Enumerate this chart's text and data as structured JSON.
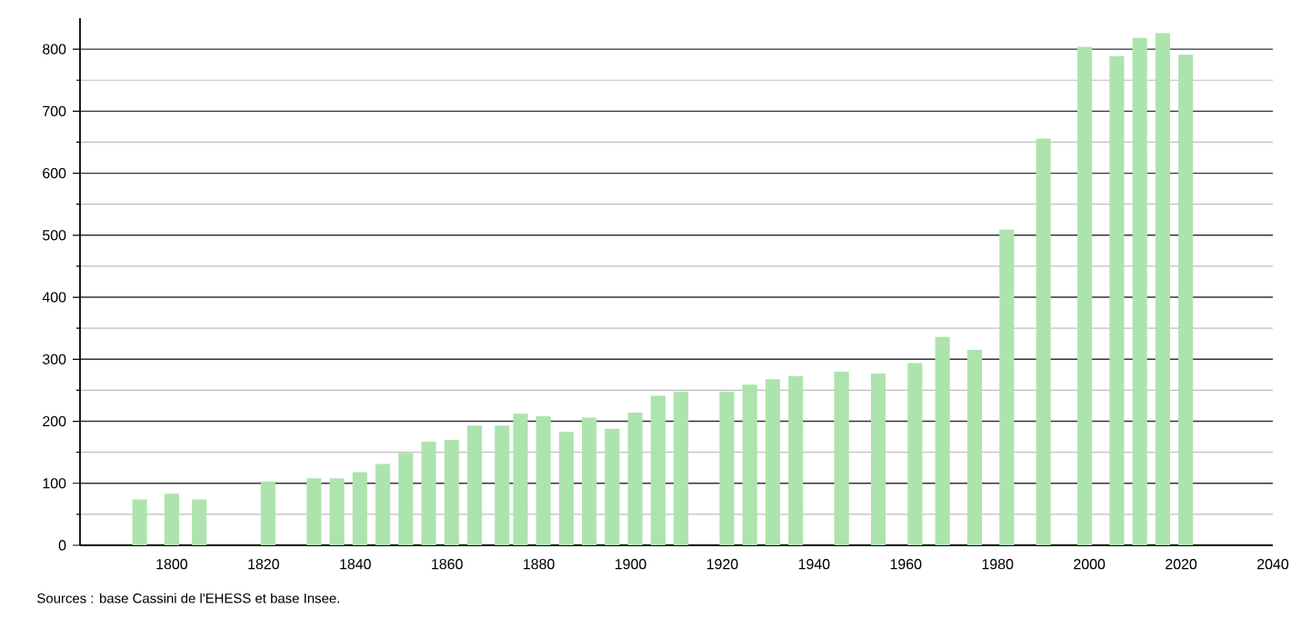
{
  "chart_data": {
    "type": "bar",
    "x": [
      1793,
      1800,
      1806,
      1821,
      1831,
      1836,
      1841,
      1846,
      1851,
      1856,
      1861,
      1866,
      1872,
      1876,
      1881,
      1886,
      1891,
      1896,
      1901,
      1906,
      1911,
      1921,
      1926,
      1931,
      1936,
      1946,
      1954,
      1962,
      1968,
      1975,
      1982,
      1990,
      1999,
      2006,
      2011,
      2016,
      2021
    ],
    "values": [
      74,
      83,
      74,
      103,
      108,
      108,
      118,
      131,
      149,
      167,
      170,
      193,
      193,
      212,
      208,
      183,
      206,
      188,
      214,
      241,
      248,
      248,
      259,
      268,
      273,
      280,
      277,
      294,
      336,
      315,
      509,
      656,
      804,
      789,
      818,
      826,
      791
    ],
    "color": "#ade4ad",
    "xlim": [
      1780,
      2040
    ],
    "xticks": [
      1800,
      1820,
      1840,
      1860,
      1880,
      1900,
      1920,
      1940,
      1960,
      1980,
      2000,
      2020,
      2040
    ],
    "ylim": [
      0,
      850
    ],
    "yticks": [
      0,
      100,
      200,
      300,
      400,
      500,
      600,
      700,
      800
    ],
    "grid": "y",
    "annotations": [
      "Sources : base Cassini de l'EHESS et base Insee."
    ]
  }
}
